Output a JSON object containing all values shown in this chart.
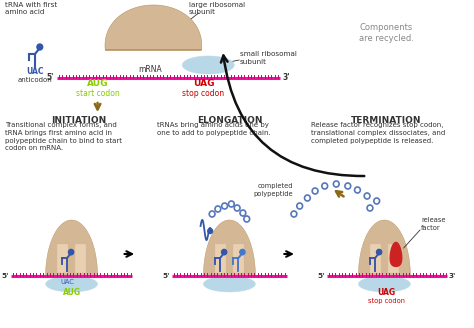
{
  "bg_color": "#ffffff",
  "mrna_color": "#ee1199",
  "mrna_tick_color": "#cc0077",
  "large_subunit_color": "#d4b896",
  "large_subunit_edge": "#b89060",
  "small_subunit_color": "#b8d8e8",
  "small_subunit_edge": "#88aacc",
  "trna_color": "#3355aa",
  "trna_color2": "#4477cc",
  "start_color": "#88cc00",
  "stop_color": "#cc0000",
  "arrow_color": "#8B6914",
  "text_color": "#333333",
  "recycled_text_color": "#888888",
  "dot_color": "#5577bb",
  "release_color": "#cc2222",
  "slot_color": "#e8d0b0",
  "slot_edge": "#c0a070",
  "label_initiation": "INITIATION",
  "label_elongation": "ELONGATION",
  "label_termination": "TERMINATION",
  "desc_initiation": "Transitional complex forms, and\ntRNA brings first amino acid in\npolypeptide chain to bind to start\ncodon on mRNA.",
  "desc_elongation": "tRNAs bring amino acids one by\none to add to polypeptide chain.",
  "desc_termination": "Release factor recognizes stop codon,\ntranslational complex dissociates, and\ncompleted polypeptide is released.",
  "label_trna": "tRNA with first\namino acid",
  "label_large": "large ribosomal\nsubunit",
  "label_small": "small ribosomal\nsubunit",
  "label_mrna": "mRNA",
  "label_recycled": "Components\nare recycled.",
  "label_completed": "completed\npolypeptide",
  "label_release": "release\nfactor",
  "label_uac": "UAC",
  "label_anticodon": "anticodon",
  "start_codon": "AUG",
  "stop_codon": "UAG",
  "label_start_codon": "start codon",
  "label_stop_codon": "stop codon"
}
